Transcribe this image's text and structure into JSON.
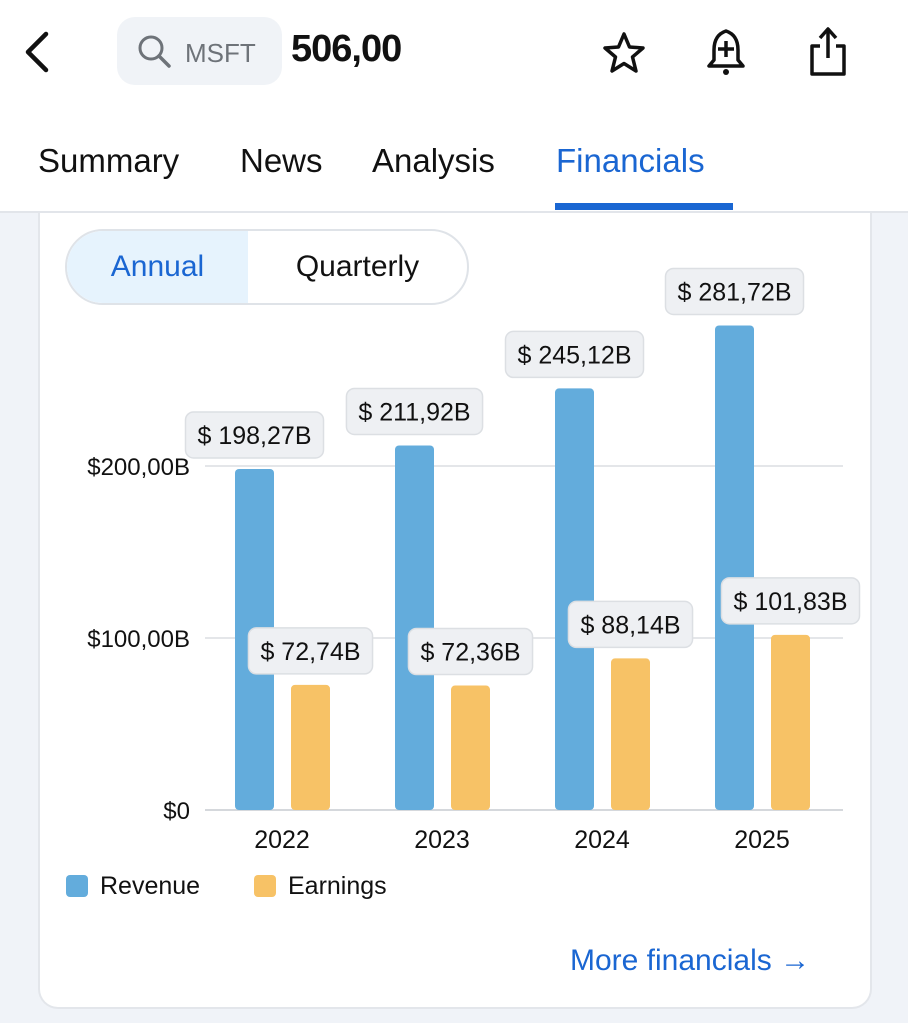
{
  "header": {
    "ticker": "MSFT",
    "price": "506,00"
  },
  "tabs": [
    {
      "label": "Summary"
    },
    {
      "label": "News"
    },
    {
      "label": "Analysis"
    },
    {
      "label": "Financials"
    }
  ],
  "active_tab": "Financials",
  "period_toggle": {
    "annual": "Annual",
    "quarterly": "Quarterly",
    "selected": "Annual"
  },
  "more_link": "More financials →",
  "colors": {
    "revenue": "#63acdc",
    "earnings": "#f7c266",
    "accent": "#1a66d2"
  },
  "chart_data": {
    "type": "bar",
    "categories": [
      "2022",
      "2023",
      "2024",
      "2025"
    ],
    "series": [
      {
        "name": "Revenue",
        "values": [
          198.27,
          211.92,
          245.12,
          281.72
        ],
        "labels": [
          "$ 198,27B",
          "$ 211,92B",
          "$ 245,12B",
          "$ 281,72B"
        ]
      },
      {
        "name": "Earnings",
        "values": [
          72.74,
          72.36,
          88.14,
          101.83
        ],
        "labels": [
          "$ 72,74B",
          "$ 72,36B",
          "$ 88,14B",
          "$ 101,83B"
        ]
      }
    ],
    "yticks": [
      {
        "value": 0,
        "label": "$0"
      },
      {
        "value": 100,
        "label": "$100,00B"
      },
      {
        "value": 200,
        "label": "$200,00B"
      }
    ],
    "ylim": [
      0,
      300
    ],
    "unit": "B USD",
    "legend": "bottom-left"
  }
}
